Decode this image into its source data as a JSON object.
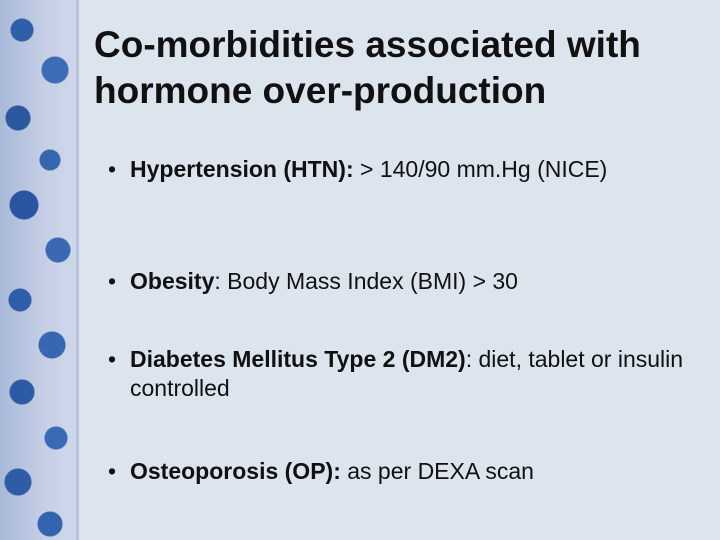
{
  "slide": {
    "title": "Co-morbidities associated with hormone over-production",
    "bullet_glyph": "•",
    "items": [
      {
        "term": "Hypertension (HTN)",
        "sep": ":",
        "desc": "  > 140/90 mm.Hg (NICE)"
      },
      {
        "term": "Obesity",
        "sep": "",
        "desc": ": Body Mass Index (BMI) > 30"
      },
      {
        "term": "Diabetes Mellitus Type 2 (DM2)",
        "sep": "",
        "desc": ": diet, tablet or insulin controlled"
      },
      {
        "term": "Osteoporosis (OP):",
        "sep": "",
        "desc": " as per DEXA scan"
      }
    ]
  }
}
